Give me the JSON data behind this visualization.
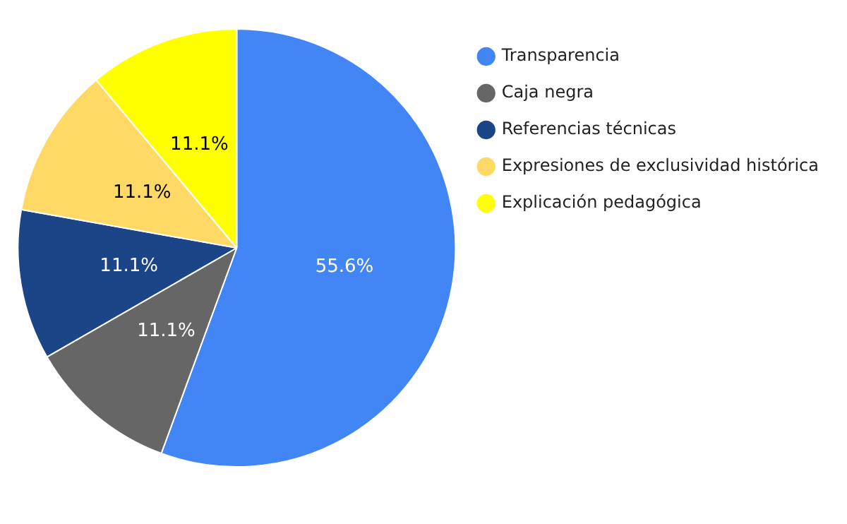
{
  "chart_data": {
    "type": "pie",
    "categories": [
      "Transparencia",
      "Caja negra",
      "Referencias técnicas",
      "Expresiones de exclusividad histórica",
      "Explicación pedagógica"
    ],
    "values": [
      55.6,
      11.1,
      11.1,
      11.1,
      11.1
    ],
    "colors": [
      "#4285f4",
      "#666666",
      "#1c4587",
      "#ffd966",
      "#ffff00"
    ],
    "value_labels": [
      "55.6%",
      "11.1%",
      "11.1%",
      "11.1%",
      "11.1%"
    ],
    "legend": "right"
  }
}
